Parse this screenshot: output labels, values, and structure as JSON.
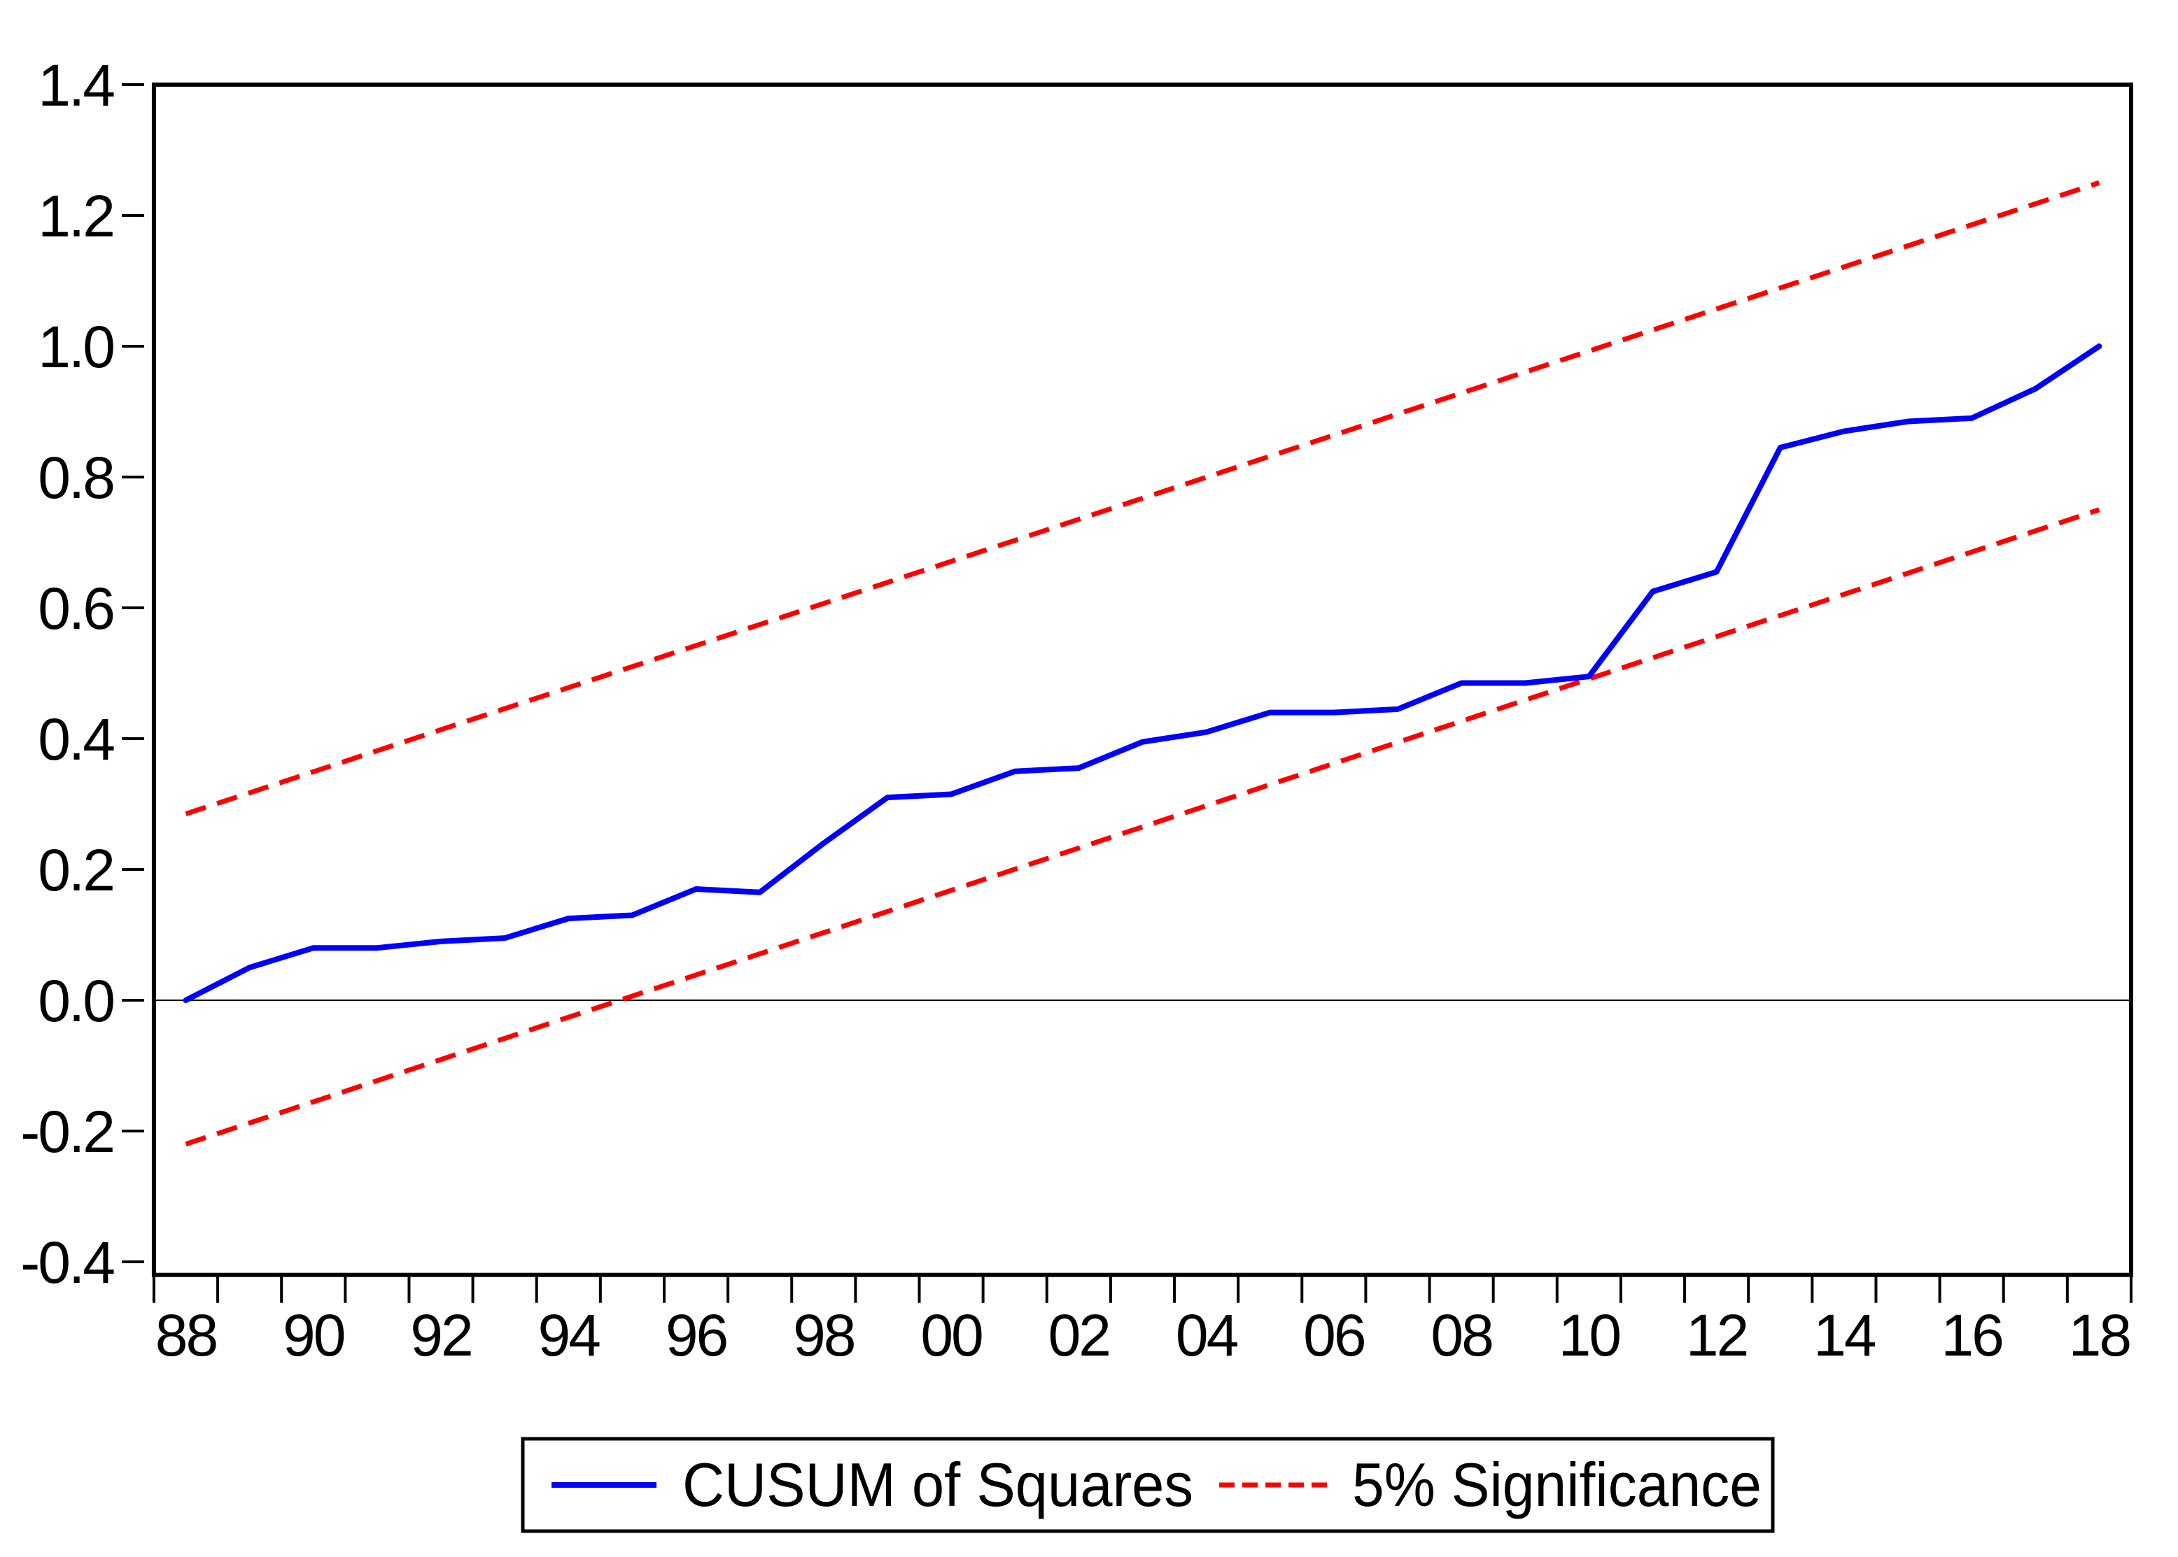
{
  "figure": {
    "background": "#ffffff"
  },
  "colors": {
    "cusum_line": "#0000ff",
    "significance_line": "#ff0000",
    "axis": "#000000",
    "zero_line": "#000000",
    "background": "#ffffff"
  },
  "chart_data": {
    "type": "line",
    "title": "",
    "xlabel": "",
    "ylabel": "",
    "grid": false,
    "zero_line": true,
    "x_years": [
      1988,
      1989,
      1990,
      1991,
      1992,
      1993,
      1994,
      1995,
      1996,
      1997,
      1998,
      1999,
      2000,
      2001,
      2002,
      2003,
      2004,
      2005,
      2006,
      2007,
      2008,
      2009,
      2010,
      2011,
      2012,
      2013,
      2014,
      2015,
      2016,
      2017,
      2018
    ],
    "series": [
      {
        "name": "CUSUM of Squares",
        "color": "#0000ff",
        "style": "solid",
        "values": [
          0.0,
          0.05,
          0.08,
          0.08,
          0.09,
          0.095,
          0.125,
          0.13,
          0.17,
          0.165,
          0.24,
          0.31,
          0.315,
          0.35,
          0.355,
          0.395,
          0.41,
          0.44,
          0.44,
          0.445,
          0.485,
          0.485,
          0.495,
          0.625,
          0.655,
          0.845,
          0.87,
          0.885,
          0.89,
          0.935,
          1.0
        ]
      },
      {
        "name": "5% Significance (upper bound)",
        "color": "#ff0000",
        "style": "dashed",
        "points": [
          [
            1988,
            0.285
          ],
          [
            2018,
            1.25
          ]
        ]
      },
      {
        "name": "5% Significance (lower bound)",
        "color": "#ff0000",
        "style": "dashed",
        "points": [
          [
            1988,
            -0.22
          ],
          [
            2018,
            0.75
          ]
        ]
      }
    ],
    "x_axis": {
      "range": [
        1987.5,
        2018.5
      ],
      "minor_tick_step_years": 1,
      "tick_label_years": [
        1988,
        1990,
        1992,
        1994,
        1996,
        1998,
        2000,
        2002,
        2004,
        2006,
        2008,
        2010,
        2012,
        2014,
        2016,
        2018
      ],
      "tick_labels": [
        "88",
        "90",
        "92",
        "94",
        "96",
        "98",
        "00",
        "02",
        "04",
        "06",
        "08",
        "10",
        "12",
        "14",
        "16",
        "18"
      ]
    },
    "y_axis": {
      "range": [
        -0.42,
        1.4
      ],
      "tick_values": [
        -0.4,
        -0.2,
        0.0,
        0.2,
        0.4,
        0.6,
        0.8,
        1.0,
        1.2,
        1.4
      ],
      "tick_labels": [
        "-0.4",
        "-0.2",
        "0.0",
        "0.2",
        "0.4",
        "0.6",
        "0.8",
        "1.0",
        "1.2",
        "1.4"
      ]
    },
    "legend": {
      "position": "bottom-center",
      "border": true,
      "entries": [
        {
          "label": "CUSUM of Squares",
          "color": "#0000ff",
          "style": "solid"
        },
        {
          "label": "5% Significance",
          "color": "#ff0000",
          "style": "dashed"
        }
      ]
    }
  }
}
